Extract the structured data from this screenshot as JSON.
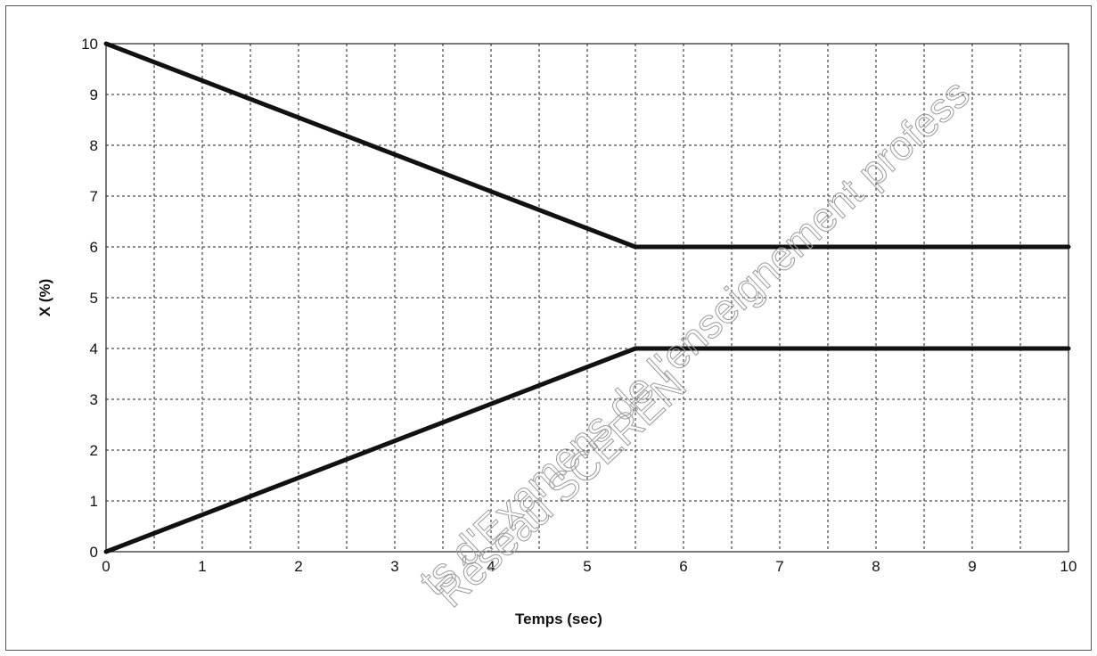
{
  "chart_data": {
    "type": "line",
    "title": "",
    "xlabel": "Temps (sec)",
    "ylabel": "X (%)",
    "xlim": [
      0,
      10
    ],
    "ylim": [
      0,
      10
    ],
    "x_ticks": [
      0,
      1,
      2,
      3,
      4,
      5,
      6,
      7,
      8,
      9,
      10
    ],
    "y_ticks": [
      0,
      1,
      2,
      3,
      4,
      5,
      6,
      7,
      8,
      9,
      10
    ],
    "grid": true,
    "x_grid_step": 0.5,
    "legend": "none",
    "series": [
      {
        "x": [
          0,
          5.5,
          10
        ],
        "y": [
          10,
          6,
          6
        ]
      },
      {
        "x": [
          0,
          5.5,
          10
        ],
        "y": [
          0,
          4,
          4
        ]
      }
    ]
  },
  "watermark": {
    "line1": "ts d'Examens de l'enseignement profess",
    "line2": "Réseau SCEREN"
  }
}
